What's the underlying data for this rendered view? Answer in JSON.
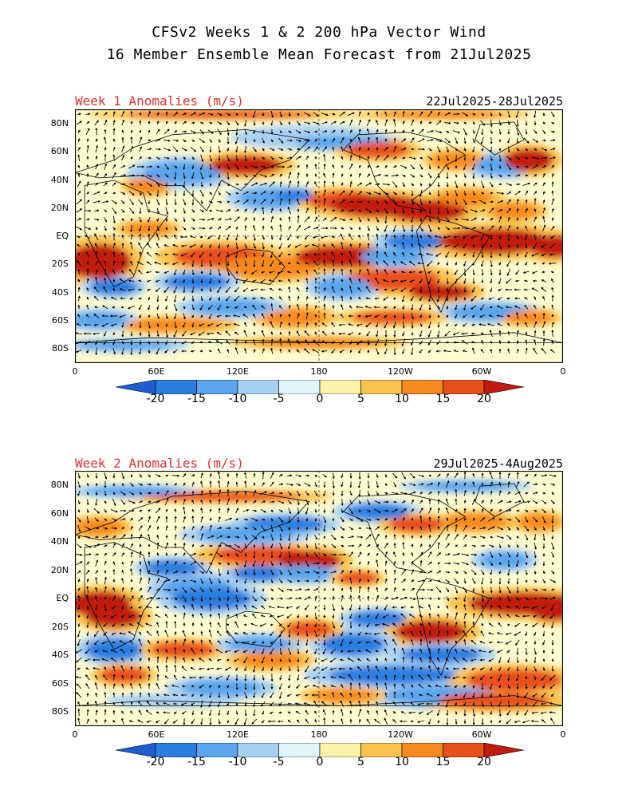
{
  "header": {
    "title_line1": "CFSv2 Weeks 1 & 2 200 hPa Vector Wind",
    "title_line2": "16 Member Ensemble Mean Forecast from 21Jul2025"
  },
  "panels": [
    {
      "title": "Week 1 Anomalies (m/s)",
      "dates": "22Jul2025-28Jul2025"
    },
    {
      "title": "Week 2 Anomalies (m/s)",
      "dates": "29Jul2025-4Aug2025"
    }
  ],
  "lat_labels": [
    "80N",
    "60N",
    "40N",
    "20N",
    "EQ",
    "20S",
    "40S",
    "60S",
    "80S"
  ],
  "lon_labels": [
    "0",
    "60E",
    "120E",
    "180",
    "120W",
    "60W",
    "0"
  ],
  "colorbar": {
    "labels": [
      "-20",
      "-15",
      "-10",
      "-5",
      "0",
      "5",
      "10",
      "15",
      "20"
    ],
    "colors": [
      "#1e5ccf",
      "#2b7ee0",
      "#5aa5ec",
      "#a8d0f2",
      "#e0f5fb",
      "#fdf3a8",
      "#fbc24e",
      "#f78a1e",
      "#e8501a",
      "#c21a10"
    ]
  },
  "map_colors": {
    "ocean_bg": "#fffbd0",
    "coast": "#000000",
    "arrow": "#000000"
  }
}
